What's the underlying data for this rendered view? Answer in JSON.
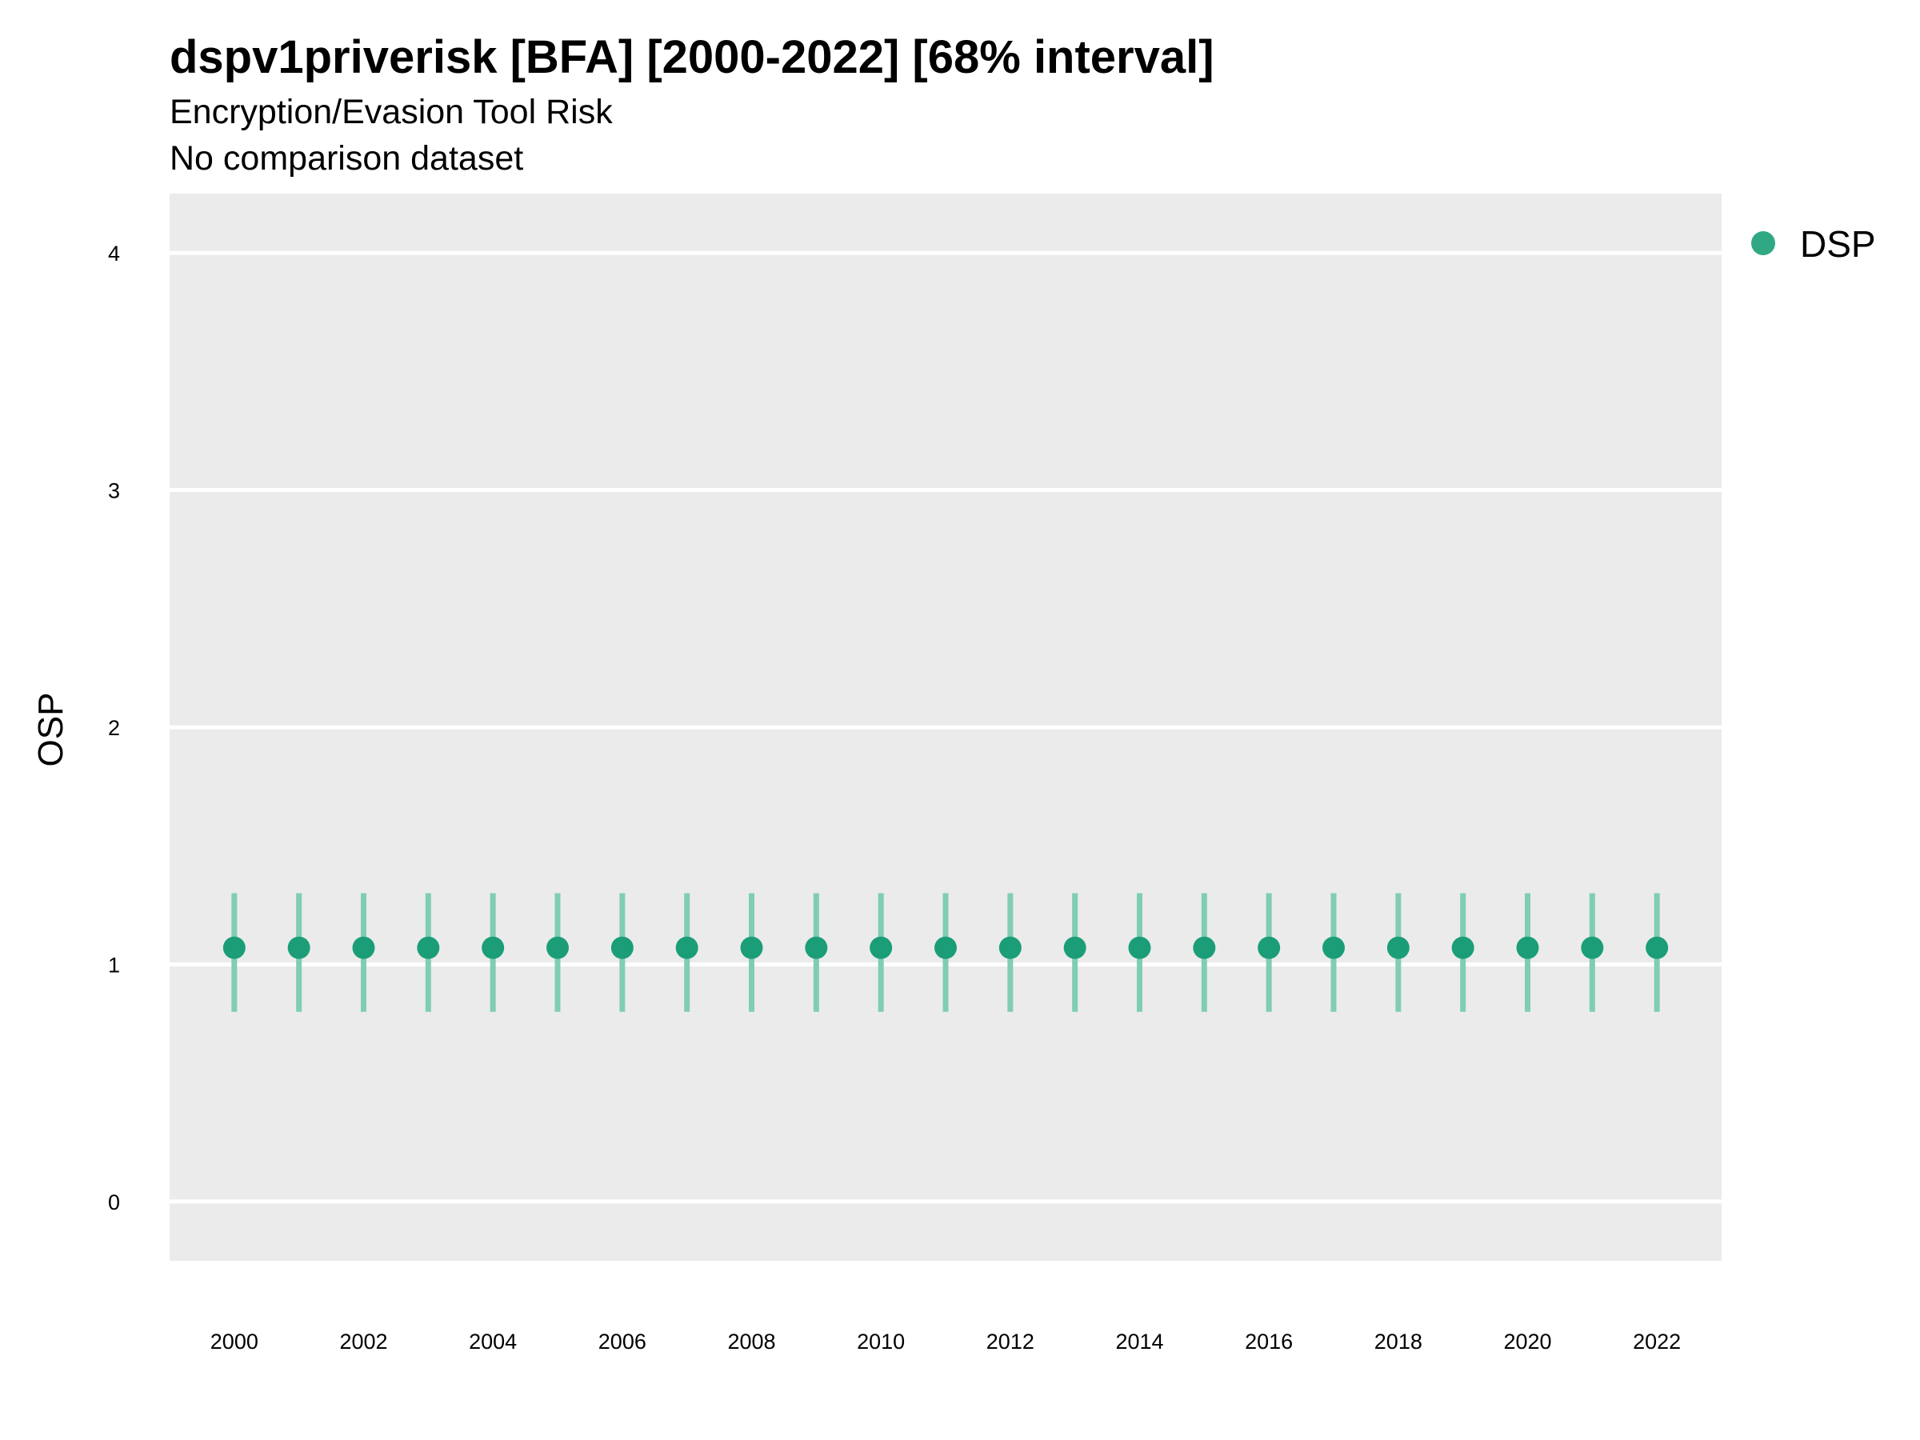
{
  "chart_data": {
    "type": "scatter",
    "title": "dspv1priverisk [BFA] [2000-2022] [68% interval]",
    "subtitle": "Encryption/Evasion Tool Risk",
    "caption_line": "No comparison dataset",
    "xlabel": "",
    "ylabel": "OSP",
    "xlim": [
      1999,
      2023
    ],
    "ylim": [
      -0.25,
      4.25
    ],
    "x_ticks": [
      2000,
      2002,
      2004,
      2006,
      2008,
      2010,
      2012,
      2014,
      2016,
      2018,
      2020,
      2022
    ],
    "y_ticks": [
      0,
      1,
      2,
      3,
      4
    ],
    "grid": true,
    "legend_position": "top-right",
    "colors": {
      "panel_background": "#ebebeb",
      "grid": "#ffffff",
      "point": "#1b9e77",
      "interval": "#7fcdb4"
    },
    "series": [
      {
        "name": "DSP",
        "x": [
          2000,
          2001,
          2002,
          2003,
          2004,
          2005,
          2006,
          2007,
          2008,
          2009,
          2010,
          2011,
          2012,
          2013,
          2014,
          2015,
          2016,
          2017,
          2018,
          2019,
          2020,
          2021,
          2022
        ],
        "y": [
          1.07,
          1.07,
          1.07,
          1.07,
          1.07,
          1.07,
          1.07,
          1.07,
          1.07,
          1.07,
          1.07,
          1.07,
          1.07,
          1.07,
          1.07,
          1.07,
          1.07,
          1.07,
          1.07,
          1.07,
          1.07,
          1.07,
          1.07
        ],
        "lower": [
          0.8,
          0.8,
          0.8,
          0.8,
          0.8,
          0.8,
          0.8,
          0.8,
          0.8,
          0.8,
          0.8,
          0.8,
          0.8,
          0.8,
          0.8,
          0.8,
          0.8,
          0.8,
          0.8,
          0.8,
          0.8,
          0.8,
          0.8
        ],
        "upper": [
          1.3,
          1.3,
          1.3,
          1.3,
          1.3,
          1.3,
          1.3,
          1.3,
          1.3,
          1.3,
          1.3,
          1.3,
          1.3,
          1.3,
          1.3,
          1.3,
          1.3,
          1.3,
          1.3,
          1.3,
          1.3,
          1.3,
          1.3
        ]
      }
    ]
  }
}
